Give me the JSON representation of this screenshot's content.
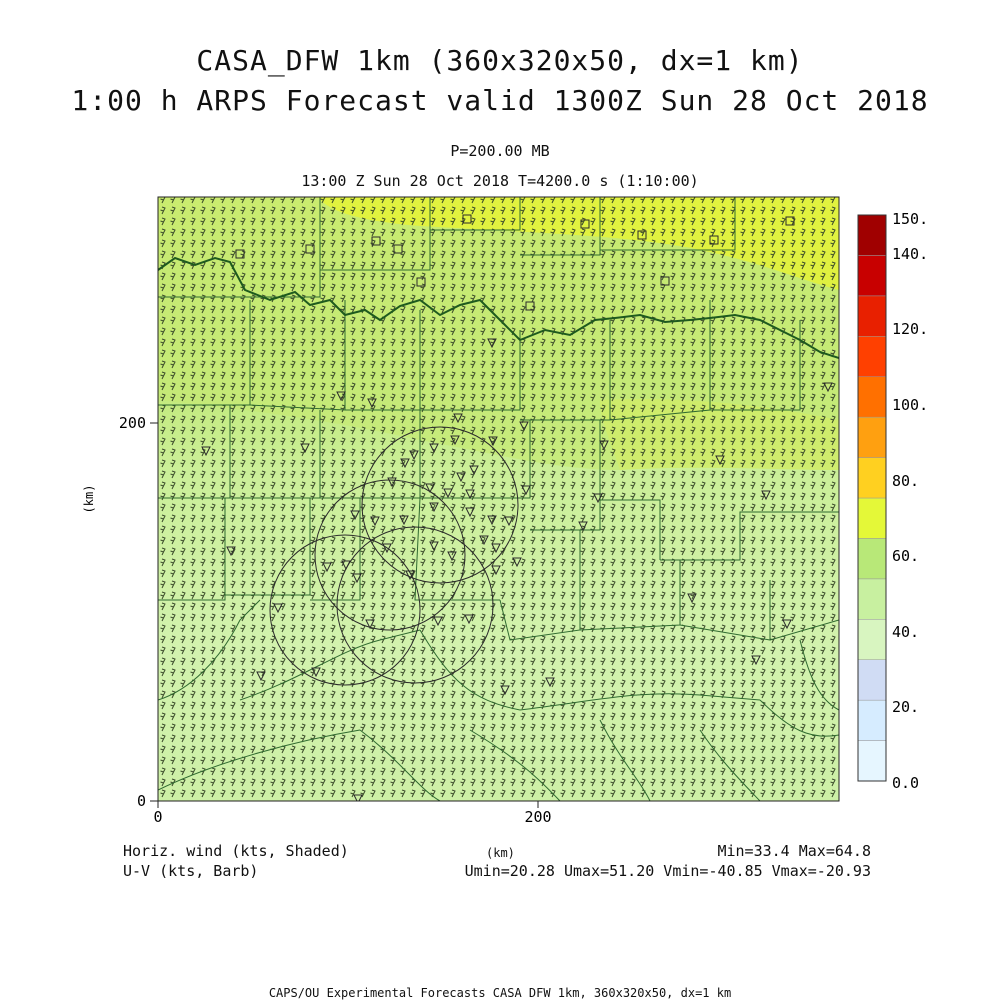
{
  "title_line1": "CASA_DFW 1km (360x320x50, dx=1 km)",
  "title_line2": "1:00 h ARPS Forecast valid 1300Z Sun 28 Oct 2018",
  "level_label": "P=200.00 MB",
  "time_label": "13:00 Z Sun 28 Oct 2018    T=4200.0 s (1:10:00)",
  "axes": {
    "x_label": "(km)",
    "y_label": "(km)",
    "x_ticks": [
      "0",
      "200"
    ],
    "y_ticks": [
      "0",
      "200"
    ]
  },
  "bottom": {
    "left_line1": "Horiz. wind (kts, Shaded)",
    "left_line2": "U-V (kts, Barb)",
    "center": "(km)",
    "right_line1": "Min=33.4 Max=64.8",
    "right_line2": "Umin=20.28 Umax=51.20 Vmin=-40.85 Vmax=-20.93"
  },
  "footer": "CAPS/OU Experimental Forecasts  CASA DFW 1km, 360x320x50, dx=1 km",
  "colorbar": {
    "labels": [
      "150.",
      "140.",
      "120.",
      "100.",
      "80.",
      "60.",
      "40.",
      "20.",
      "0.0"
    ],
    "colors_bottom_to_top": [
      "#e6f6ff",
      "#d6ecff",
      "#d0dcf4",
      "#d8f5c0",
      "#c8f0a0",
      "#b8e878",
      "#e4f838",
      "#ffd020",
      "#ffa010",
      "#ff7000",
      "#ff4000",
      "#e82000",
      "#c80000",
      "#a00000"
    ]
  },
  "colors": {
    "field_low": "#cdf2a8",
    "field_mid": "#c2ed80",
    "field_high": "#dff04a",
    "border_line": "#2f6a2f",
    "river_line": "#1f5a1f"
  }
}
